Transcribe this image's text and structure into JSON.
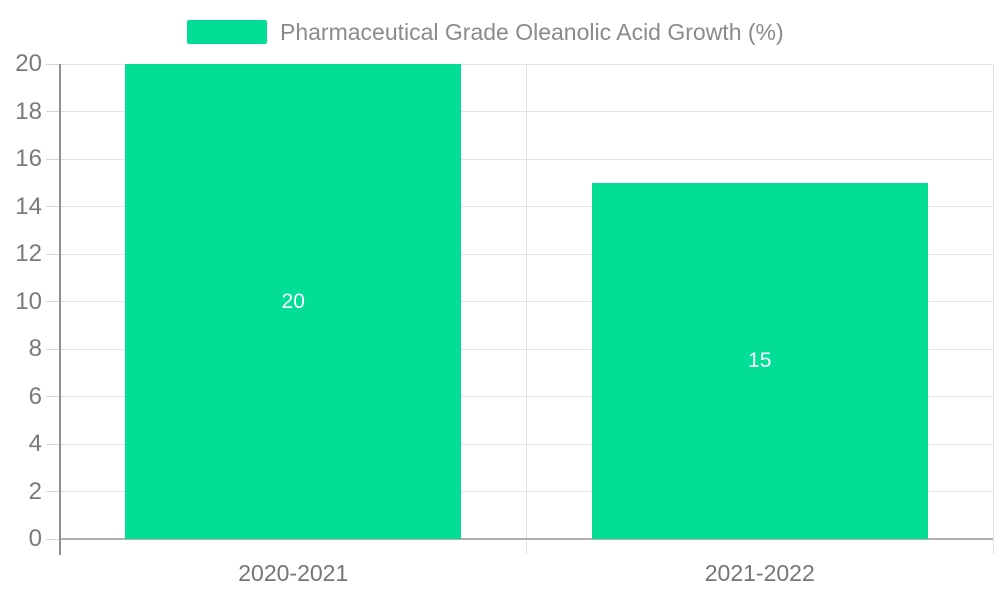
{
  "chart_data": {
    "type": "bar",
    "title": "Pharmaceutical Grade Oleanolic Acid Growth (%)",
    "categories": [
      "2020-2021",
      "2021-2022"
    ],
    "values": [
      20,
      15
    ],
    "bar_value_labels": [
      "20",
      "15"
    ],
    "xlabel": "",
    "ylabel": "",
    "ylim": [
      0,
      20
    ],
    "ytick_step": 2,
    "grid": true,
    "legend_position": "top",
    "bar_width_ratio": 0.72,
    "legend": {
      "label": "Pharmaceutical Grade Oleanolic Acid Growth (%)",
      "swatch_color": "#02de96"
    },
    "colors": {
      "bar": "#02de96",
      "bar_label": "#ffffff",
      "gridline": "#e3e3e3",
      "boundary_line": "#e3e3e3",
      "y_axis_line": "#8f8f8f",
      "x_axis_line": "#b0b0b0",
      "y_tick": "#d6d6d6",
      "y_tick_label": "#7a7a7a",
      "x_tick_label": "#757575",
      "legend_text": "#8b8b8b",
      "background": "#ffffff"
    }
  }
}
